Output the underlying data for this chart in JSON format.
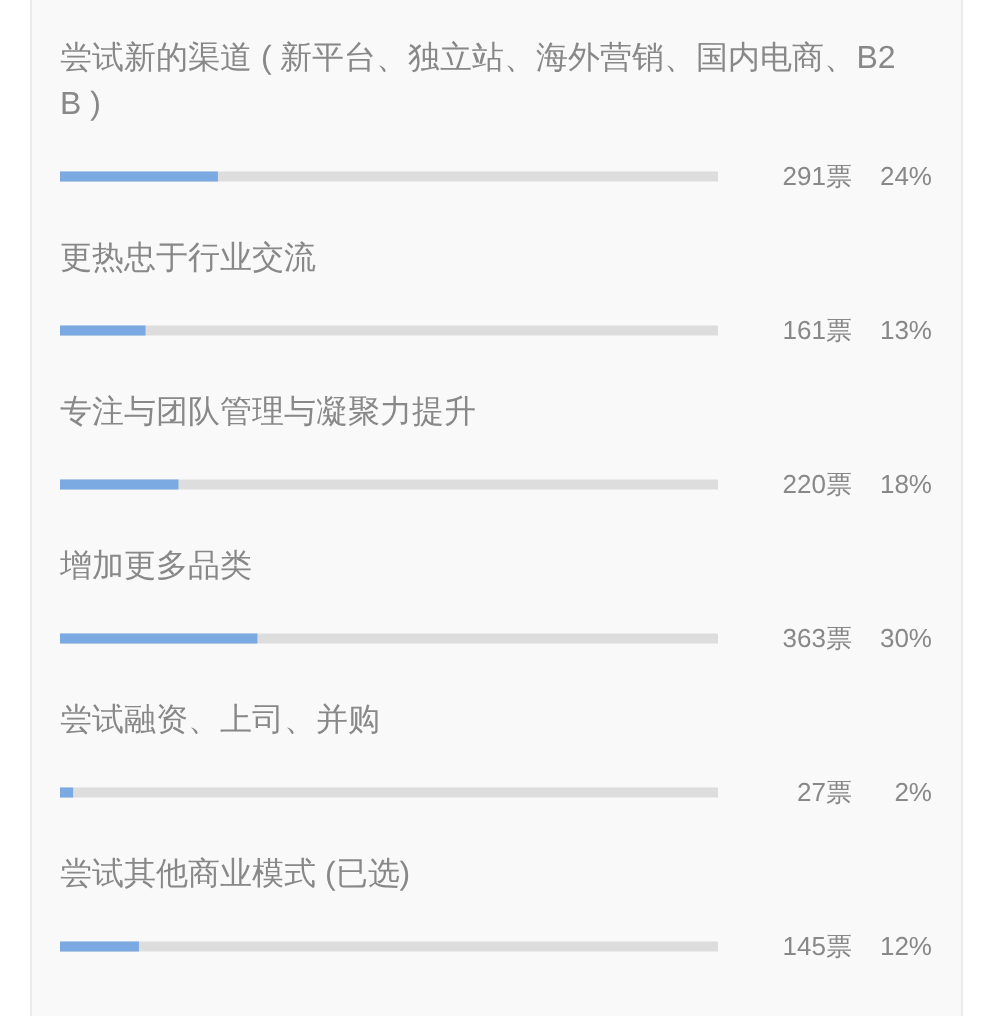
{
  "chart_data": {
    "type": "bar",
    "orientation": "horizontal",
    "categories": [
      "尝试新的渠道 ( 新平台、独立站、海外营销、国内电商、B2B )",
      "更热忠于行业交流",
      "专注与团队管理与凝聚力提升",
      "增加更多品类",
      "尝试融资、上司、并购",
      "尝试其他商业模式 (已选)"
    ],
    "values": [
      24,
      13,
      18,
      30,
      2,
      12
    ],
    "color": "#7baae2",
    "xlim": [
      0,
      100
    ],
    "value_labels": [
      "24%",
      "13%",
      "18%",
      "30%",
      "2%",
      "12%"
    ],
    "annotations": [
      "291票",
      "161票",
      "220票",
      "363票",
      "27票",
      "145票"
    ],
    "tick_labels": "y"
  }
}
